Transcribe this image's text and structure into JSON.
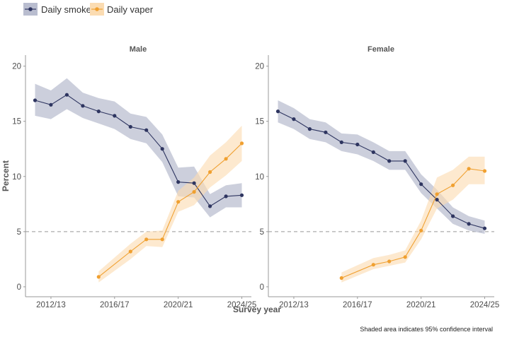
{
  "colors": {
    "smoker": "#2e3560",
    "smoker_band": "#b9bdcf",
    "vaper": "#f0a030",
    "vaper_band": "#fbdcb2",
    "reference": "#999999",
    "axis": "#999999"
  },
  "legend": {
    "items": [
      {
        "label": "Daily smoker"
      },
      {
        "label": "Daily vaper"
      }
    ]
  },
  "caption": "Shaded area indicates 95% confidence interval",
  "chart_data": {
    "type": "line",
    "xlabel": "Survey year",
    "ylabel": "Percent",
    "x": [
      2012,
      2013,
      2014,
      2015,
      2016,
      2017,
      2018,
      2019,
      2020,
      2021,
      2022,
      2023,
      2024,
      2025
    ],
    "x_tick_labels": [
      "2012/13",
      "2016/17",
      "2020/21",
      "2024/25"
    ],
    "x_tick_values": [
      2013,
      2017,
      2021,
      2025
    ],
    "xlim": [
      2011.4,
      2025.6
    ],
    "ylim": [
      -0.9,
      21
    ],
    "y_ticks": [
      0,
      5,
      10,
      15,
      20
    ],
    "reference_line": 5,
    "facets": [
      {
        "label": "Male",
        "series": [
          {
            "name": "Daily smoker",
            "x": [
              2012,
              2013,
              2014,
              2015,
              2016,
              2017,
              2018,
              2019,
              2020,
              2021,
              2022,
              2023,
              2024,
              2025
            ],
            "values": [
              16.9,
              16.5,
              17.4,
              16.4,
              15.9,
              15.5,
              14.5,
              14.2,
              12.5,
              9.5,
              9.4,
              7.3,
              8.2,
              8.3
            ],
            "lower": [
              15.5,
              15.2,
              16.1,
              15.3,
              14.8,
              14.3,
              13.4,
              13.0,
              11.3,
              8.2,
              8.1,
              6.3,
              7.2,
              7.2
            ],
            "upper": [
              18.4,
              17.8,
              18.9,
              17.6,
              17.1,
              16.8,
              15.7,
              15.4,
              13.8,
              10.8,
              10.9,
              8.4,
              9.2,
              9.4
            ]
          },
          {
            "name": "Daily vaper",
            "x": [
              2016,
              2018,
              2019,
              2020,
              2021,
              2022,
              2023,
              2024,
              2025
            ],
            "values": [
              0.9,
              3.2,
              4.3,
              4.3,
              7.7,
              8.6,
              10.4,
              11.6,
              13.0
            ],
            "lower": [
              0.4,
              2.5,
              3.7,
              3.6,
              6.8,
              7.4,
              9.0,
              10.1,
              11.4
            ],
            "upper": [
              1.4,
              3.9,
              5.0,
              5.1,
              8.7,
              9.9,
              11.9,
              13.1,
              14.6
            ]
          }
        ]
      },
      {
        "label": "Female",
        "series": [
          {
            "name": "Daily smoker",
            "x": [
              2012,
              2013,
              2014,
              2015,
              2016,
              2017,
              2018,
              2019,
              2020,
              2021,
              2022,
              2023,
              2024,
              2025
            ],
            "values": [
              15.9,
              15.2,
              14.3,
              14.0,
              13.1,
              12.9,
              12.2,
              11.4,
              11.4,
              9.3,
              7.9,
              6.4,
              5.7,
              5.3
            ],
            "lower": [
              14.9,
              14.3,
              13.4,
              13.1,
              12.3,
              12.0,
              11.4,
              10.6,
              10.6,
              8.5,
              7.1,
              5.7,
              5.1,
              4.8
            ],
            "upper": [
              16.9,
              16.2,
              15.2,
              14.9,
              13.9,
              13.8,
              13.1,
              12.3,
              12.3,
              10.2,
              8.8,
              7.2,
              6.4,
              6.0
            ]
          },
          {
            "name": "Daily vaper",
            "x": [
              2016,
              2018,
              2019,
              2020,
              2021,
              2022,
              2023,
              2024,
              2025
            ],
            "values": [
              0.8,
              2.0,
              2.3,
              2.7,
              5.1,
              8.4,
              9.2,
              10.7,
              10.5
            ],
            "lower": [
              0.4,
              1.6,
              1.9,
              2.2,
              4.3,
              7.1,
              7.9,
              9.3,
              9.3
            ],
            "upper": [
              1.3,
              2.6,
              2.9,
              3.3,
              6.0,
              9.9,
              10.6,
              11.8,
              11.8
            ]
          }
        ]
      }
    ]
  }
}
